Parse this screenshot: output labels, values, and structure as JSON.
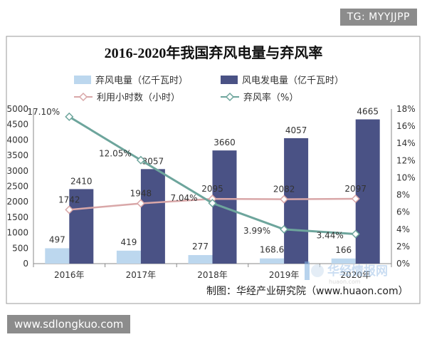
{
  "watermark_tg": "TG: MYYJJPP",
  "watermark_site": "www.sdlongkuo.com",
  "watermark_logo": "华经情报网",
  "watermark_logo_sub": "huaon.com",
  "source_note": "制图：华经产业研究院（www.huaon.com）",
  "colors": {
    "curtailed_bar": "#bcd7ee",
    "generation_bar": "#4a5285",
    "hours_line": "#d9a7a8",
    "rate_line": "#6da59c"
  },
  "chart_data": {
    "type": "bar",
    "title": "2016-2020年我国弃风电量与弃风率",
    "categories": [
      "2016年",
      "2017年",
      "2018年",
      "2019年",
      "2020年"
    ],
    "series": [
      {
        "name": "弃风电量（亿千瓦时）",
        "kind": "bar",
        "axis": "left",
        "values": [
          497,
          419,
          277,
          168.6,
          166
        ],
        "labels": [
          "497",
          "419",
          "277",
          "168.6",
          "166"
        ]
      },
      {
        "name": "风电发电量（亿千瓦时）",
        "kind": "bar",
        "axis": "left",
        "values": [
          2410,
          3057,
          3660,
          4057,
          4665
        ],
        "labels": [
          "2410",
          "3057",
          "3660",
          "4057",
          "4665"
        ]
      },
      {
        "name": "利用小时数（小时）",
        "kind": "line",
        "axis": "left",
        "values": [
          1742,
          1948,
          2095,
          2082,
          2097
        ],
        "labels": [
          "1742",
          "1948",
          "2095",
          "2082",
          "2097"
        ]
      },
      {
        "name": "弃风率（%）",
        "kind": "line",
        "axis": "right",
        "values": [
          17.1,
          12.05,
          7.04,
          3.99,
          3.44
        ],
        "labels": [
          "17.10%",
          "12.05%",
          "7.04%",
          "3.99%",
          "3.44%"
        ]
      }
    ],
    "ylim": [
      0,
      5000
    ],
    "y_ticks": [
      "0",
      "500",
      "1000",
      "1500",
      "2000",
      "2500",
      "3000",
      "3500",
      "4000",
      "4500",
      "5000"
    ],
    "y2lim": [
      0,
      18
    ],
    "y2_ticks": [
      "0%",
      "2%",
      "4%",
      "6%",
      "8%",
      "10%",
      "12%",
      "14%",
      "16%",
      "18%"
    ],
    "grid": false,
    "legend_position": "top"
  }
}
